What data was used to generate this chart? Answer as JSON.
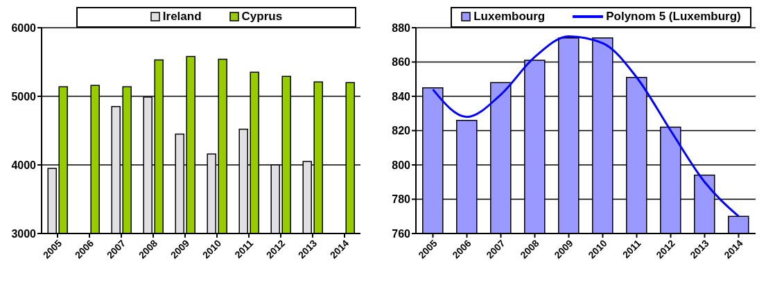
{
  "chart_data": [
    {
      "type": "bar",
      "categories": [
        "2005",
        "2006",
        "2007",
        "2008",
        "2009",
        "2010",
        "2011",
        "2012",
        "2013",
        "2014"
      ],
      "series": [
        {
          "name": "Ireland",
          "color": "#e0e0e4",
          "values": [
            3950,
            null,
            4850,
            4990,
            4450,
            4160,
            4520,
            4000,
            4050,
            null
          ]
        },
        {
          "name": "Cyprus",
          "color": "#99cc00",
          "values": [
            5140,
            5160,
            5140,
            5530,
            5580,
            5540,
            5350,
            5290,
            5210,
            5200
          ]
        }
      ],
      "ylim": [
        3000,
        6000
      ],
      "yticks": [
        3000,
        4000,
        5000,
        6000
      ],
      "grid": "y",
      "legend": "top"
    },
    {
      "type": "bar",
      "categories": [
        "2005",
        "2006",
        "2007",
        "2008",
        "2009",
        "2010",
        "2011",
        "2012",
        "2013",
        "2014"
      ],
      "series": [
        {
          "name": "Luxembourg",
          "color": "#9999ff",
          "values": [
            845,
            826,
            848,
            861,
            874,
            874,
            851,
            822,
            794,
            770
          ]
        },
        {
          "name": "Polynom 5 (Luxemburg)",
          "type": "line",
          "color": "#0000ff",
          "values": [
            844,
            828,
            841,
            863,
            875,
            871,
            851,
            820,
            790,
            770
          ]
        }
      ],
      "ylim": [
        760,
        880
      ],
      "yticks": [
        760,
        780,
        800,
        820,
        840,
        860,
        880
      ],
      "grid": "y",
      "legend": "top"
    }
  ]
}
